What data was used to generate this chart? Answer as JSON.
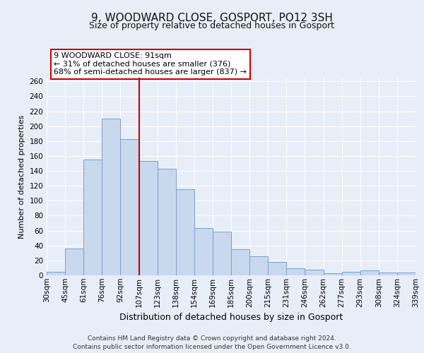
{
  "title": "9, WOODWARD CLOSE, GOSPORT, PO12 3SH",
  "subtitle": "Size of property relative to detached houses in Gosport",
  "xlabel": "Distribution of detached houses by size in Gosport",
  "ylabel": "Number of detached properties",
  "categories": [
    "30sqm",
    "45sqm",
    "61sqm",
    "76sqm",
    "92sqm",
    "107sqm",
    "123sqm",
    "138sqm",
    "154sqm",
    "169sqm",
    "185sqm",
    "200sqm",
    "215sqm",
    "231sqm",
    "246sqm",
    "262sqm",
    "277sqm",
    "293sqm",
    "308sqm",
    "324sqm",
    "339sqm"
  ],
  "values": [
    5,
    36,
    155,
    210,
    183,
    153,
    143,
    115,
    63,
    59,
    35,
    26,
    18,
    9,
    8,
    3,
    5,
    7,
    4,
    4
  ],
  "bar_color": "#c8d9ee",
  "bar_edge_color": "#7aa0c8",
  "vline_color": "#cc0000",
  "annotation_title": "9 WOODWARD CLOSE: 91sqm",
  "annotation_line1": "← 31% of detached houses are smaller (376)",
  "annotation_line2": "68% of semi-detached houses are larger (837) →",
  "annotation_box_color": "#ffffff",
  "annotation_box_edge": "#cc0000",
  "ylim": [
    0,
    265
  ],
  "yticks": [
    0,
    20,
    40,
    60,
    80,
    100,
    120,
    140,
    160,
    180,
    200,
    220,
    240,
    260
  ],
  "footer_line1": "Contains HM Land Registry data © Crown copyright and database right 2024.",
  "footer_line2": "Contains public sector information licensed under the Open Government Licence v3.0.",
  "title_fontsize": 11,
  "subtitle_fontsize": 9,
  "xlabel_fontsize": 9,
  "ylabel_fontsize": 8,
  "tick_fontsize": 7.5,
  "annotation_fontsize": 8,
  "footer_fontsize": 6.5,
  "background_color": "#e8eef8",
  "plot_background": "#e8eef8",
  "grid_color": "#ffffff"
}
